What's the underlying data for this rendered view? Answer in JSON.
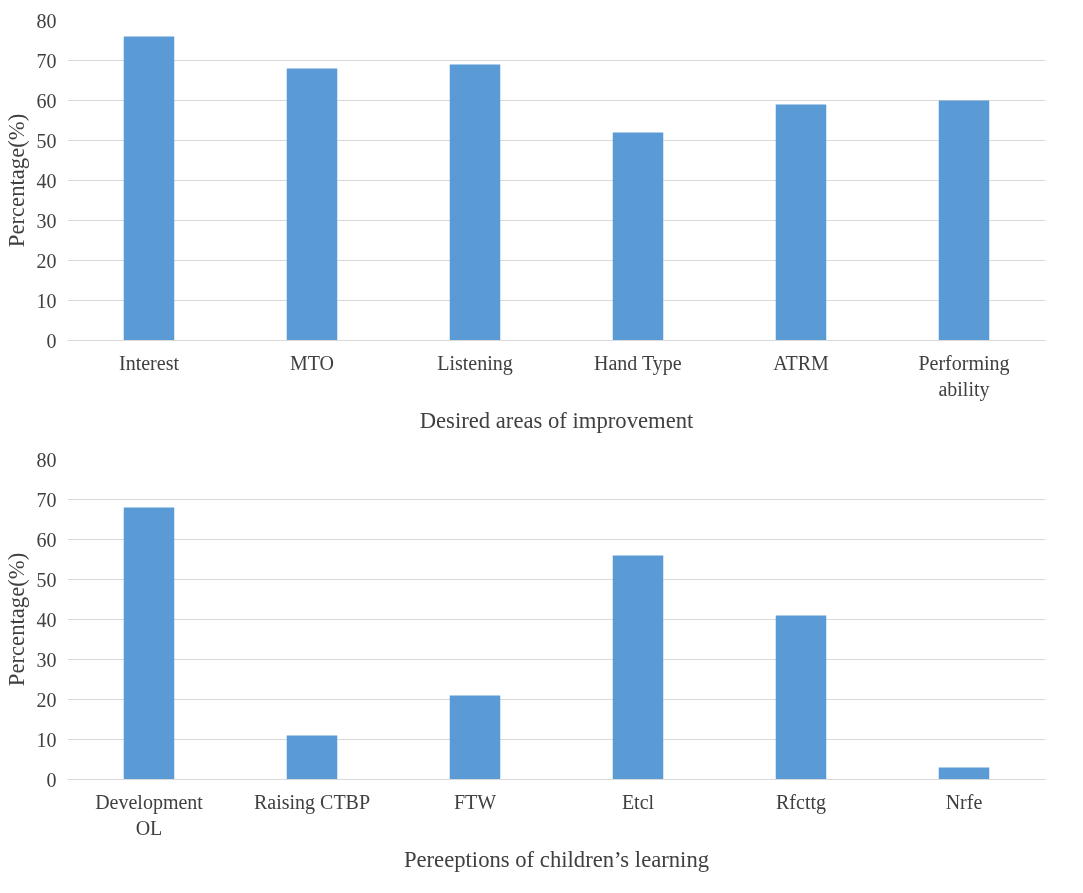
{
  "chart_data": [
    {
      "type": "bar",
      "xlabel": "Desired areas of improvement",
      "ylabel": "Percentage(%)",
      "categories": [
        "Interest",
        "MTO",
        "Listening",
        "Hand Type",
        "ATRM",
        "Performing\nability"
      ],
      "values": [
        76,
        68,
        69,
        52,
        59,
        60
      ],
      "color": "#5b9bd5",
      "ylim": [
        0,
        80
      ],
      "yticks": [
        0,
        10,
        20,
        30,
        40,
        50,
        60,
        70,
        80
      ],
      "grid": "y"
    },
    {
      "type": "bar",
      "xlabel": "Pereeptions of children’s learning",
      "ylabel": "Percentage(%)",
      "categories": [
        "Development\nOL",
        "Raising CTBP",
        "FTW",
        "Etcl",
        "Rfcttg",
        "Nrfe"
      ],
      "values": [
        68,
        11,
        21,
        56,
        41,
        3
      ],
      "color": "#5b9bd5",
      "ylim": [
        0,
        80
      ],
      "yticks": [
        0,
        10,
        20,
        30,
        40,
        50,
        60,
        70,
        80
      ],
      "grid": "y"
    }
  ]
}
